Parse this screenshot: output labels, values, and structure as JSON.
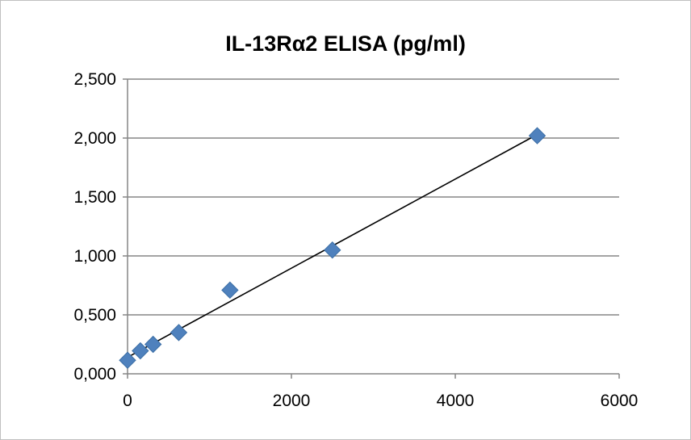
{
  "chart_data": {
    "type": "scatter",
    "title": "IL-13Rα2 ELISA (pg/ml)",
    "xlabel": "",
    "ylabel": "",
    "xlim": [
      0,
      6000
    ],
    "ylim": [
      0,
      2.5
    ],
    "x_ticks": [
      0,
      2000,
      4000,
      6000
    ],
    "x_tick_labels": [
      "0",
      "2000",
      "4000",
      "6000"
    ],
    "y_ticks": [
      0,
      0.5,
      1,
      1.5,
      2,
      2.5
    ],
    "y_tick_labels": [
      "0,000",
      "0,500",
      "1,000",
      "1,500",
      "2,000",
      "2,500"
    ],
    "grid": "horizontal major gridlines",
    "legend": "none",
    "marker": "diamond",
    "marker_color": "#4f81bd",
    "trendline_color": "#000000",
    "series": [
      {
        "x": [
          0,
          156,
          312,
          625,
          1250,
          2500,
          5000
        ],
        "y": [
          0.115,
          0.195,
          0.25,
          0.35,
          0.71,
          1.05,
          2.02
        ]
      }
    ],
    "trendline": {
      "type": "linear",
      "x": [
        0,
        5000
      ],
      "y": [
        0.14,
        2.03
      ]
    }
  }
}
